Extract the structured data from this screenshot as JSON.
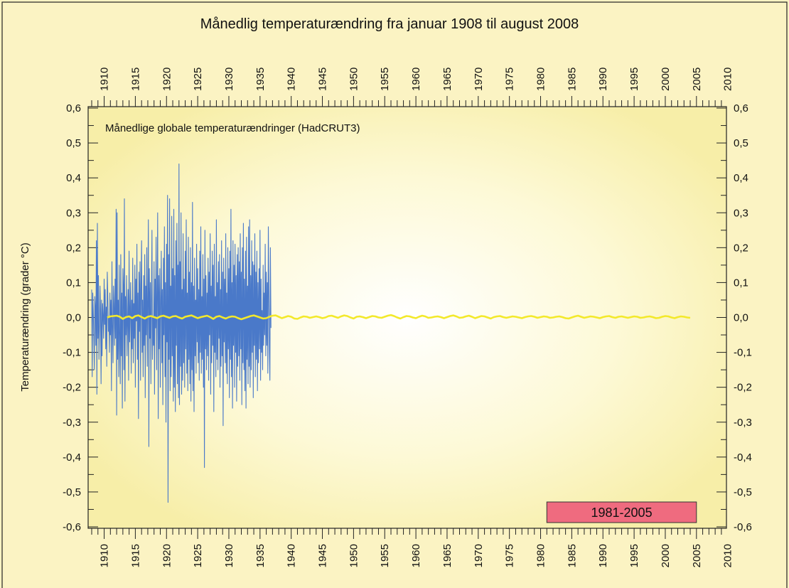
{
  "chart_data": {
    "type": "line",
    "title": "Månedlig temperaturændring fra januar 1908 til august 2008",
    "inner_label": "Månedlige globale temperaturændringer (HadCRUT3)",
    "ylabel": "Temperaturændring (grader °C)",
    "xlabel": "",
    "xlim": [
      1908.0,
      2008.67
    ],
    "ylim": [
      -0.6,
      0.6
    ],
    "x_ticks": [
      1910,
      1915,
      1920,
      1925,
      1930,
      1935,
      1940,
      1945,
      1950,
      1955,
      1960,
      1965,
      1970,
      1975,
      1980,
      1985,
      1990,
      1995,
      2000,
      2005,
      2010
    ],
    "x_tick_labels": [
      "1910",
      "1915",
      "1920",
      "1925",
      "1930",
      "1935",
      "1940",
      "1945",
      "1950",
      "1955",
      "1960",
      "1965",
      "1970",
      "1975",
      "1980",
      "1985",
      "1990",
      "1995",
      "2000",
      "2005",
      "2010"
    ],
    "y_ticks": [
      0.6,
      0.5,
      0.4,
      0.3,
      0.2,
      0.1,
      0.0,
      -0.1,
      -0.2,
      -0.3,
      -0.4,
      -0.5,
      -0.6
    ],
    "y_tick_labels": [
      "0,6",
      "0,5",
      "0,4",
      "0,3",
      "0,2",
      "0,1",
      "0,0",
      "-0,1",
      "-0,2",
      "-0,3",
      "-0,4",
      "-0,5",
      "-0,6"
    ],
    "grid": false,
    "series": [
      {
        "role": "monthly",
        "color": "#4a79c9",
        "x_start": 1908.0,
        "x_step": 0.0833333,
        "values": [
          0.08,
          -0.17,
          0.07,
          0.02,
          -0.05,
          -0.15,
          0.06,
          0.03,
          -0.08,
          0.22,
          -0.22,
          0.27,
          -0.06,
          0.12,
          -0.12,
          -0.03,
          0.09,
          0.02,
          -0.19,
          0.05,
          -0.11,
          0.04,
          0.0,
          -0.06,
          0.11,
          -0.02,
          0.08,
          -0.09,
          0.03,
          -0.14,
          0.13,
          0.06,
          -0.04,
          0.0,
          -0.1,
          0.07,
          -0.05,
          0.05,
          -0.21,
          0.16,
          -0.02,
          -0.13,
          0.09,
          0.04,
          -0.08,
          0.11,
          -0.06,
          0.31,
          -0.28,
          0.3,
          -0.12,
          0.05,
          -0.17,
          0.15,
          -0.08,
          -0.19,
          0.18,
          -0.11,
          0.07,
          -0.26,
          0.14,
          0.09,
          -0.15,
          0.34,
          -0.24,
          0.06,
          -0.05,
          0.12,
          -0.11,
          -0.02,
          0.08,
          -0.18,
          0.19,
          -0.07,
          0.02,
          0.1,
          -0.16,
          0.05,
          -0.09,
          0.17,
          -0.13,
          0.04,
          -0.06,
          0.15,
          -0.2,
          0.11,
          -0.01,
          0.21,
          -0.12,
          0.07,
          -0.29,
          0.13,
          -0.04,
          0.16,
          -0.18,
          0.08,
          0.22,
          -0.1,
          0.05,
          -0.17,
          0.12,
          -0.08,
          0.18,
          -0.23,
          0.09,
          -0.05,
          0.2,
          -0.14,
          0.04,
          0.28,
          -0.37,
          0.14,
          -0.06,
          0.1,
          -0.19,
          0.06,
          0.25,
          -0.12,
          0.0,
          -0.08,
          0.16,
          -0.22,
          0.11,
          -0.03,
          0.23,
          -0.15,
          0.07,
          0.3,
          -0.29,
          0.12,
          -0.09,
          0.14,
          -0.2,
          0.05,
          0.19,
          -0.13,
          0.08,
          -0.25,
          0.17,
          -0.05,
          0.26,
          -0.17,
          0.1,
          -0.3,
          0.21,
          -0.07,
          0.35,
          -0.53,
          0.18,
          -0.12,
          0.34,
          -0.21,
          0.09,
          -0.17,
          0.29,
          -0.11,
          0.14,
          -0.24,
          0.31,
          -0.2,
          0.12,
          -0.27,
          0.22,
          -0.08,
          0.27,
          -0.19,
          0.15,
          -0.23,
          0.44,
          -0.25,
          0.16,
          -0.14,
          0.3,
          -0.22,
          0.08,
          -0.18,
          0.24,
          -0.13,
          0.11,
          -0.2,
          0.19,
          -0.09,
          0.28,
          -0.16,
          0.07,
          -0.21,
          0.23,
          -0.12,
          0.13,
          -0.19,
          0.2,
          -0.24,
          0.1,
          -0.15,
          0.33,
          -0.21,
          0.09,
          -0.27,
          0.17,
          -0.11,
          0.05,
          -0.16,
          0.21,
          -0.07,
          0.14,
          -0.13,
          0.08,
          -0.18,
          0.19,
          -0.1,
          0.26,
          -0.16,
          0.06,
          -0.12,
          0.18,
          -0.2,
          0.11,
          -0.43,
          0.25,
          -0.09,
          0.12,
          -0.15,
          0.07,
          -0.11,
          0.17,
          -0.18,
          0.13,
          -0.05,
          0.24,
          -0.22,
          0.09,
          -0.13,
          0.19,
          -0.08,
          0.15,
          -0.27,
          0.21,
          -0.1,
          0.06,
          -0.17,
          0.28,
          -0.12,
          0.1,
          -0.15,
          0.16,
          -0.06,
          0.18,
          -0.2,
          0.08,
          -0.14,
          0.22,
          -0.11,
          0.13,
          -0.31,
          0.17,
          -0.07,
          0.11,
          -0.13,
          0.24,
          -0.16,
          0.07,
          -0.19,
          0.2,
          -0.09,
          0.14,
          -0.23,
          0.19,
          -0.12,
          0.31,
          -0.17,
          0.1,
          -0.26,
          0.22,
          -0.08,
          0.15,
          -0.2,
          0.21,
          -0.1,
          0.12,
          -0.24,
          0.18,
          -0.14,
          0.2,
          -0.11,
          0.16,
          -0.18,
          0.24,
          -0.09,
          0.13,
          -0.25,
          0.2,
          -0.13,
          0.27,
          -0.15,
          0.11,
          -0.21,
          0.19,
          -0.26,
          0.23,
          -0.12,
          0.09,
          -0.19,
          0.26,
          -0.14,
          0.28,
          -0.2,
          0.12,
          -0.15,
          0.22,
          -0.1,
          0.16,
          -0.23,
          0.15,
          -0.08,
          0.24,
          -0.17,
          0.13,
          -0.12,
          0.19,
          -0.21,
          0.1,
          -0.13,
          0.14,
          -0.09,
          0.25,
          -0.18,
          0.11,
          -0.1,
          0.02,
          -0.15,
          0.15,
          -0.08,
          0.07,
          -0.05,
          0.21,
          -0.11,
          0.13,
          -0.08,
          0.1,
          -0.16,
          0.26,
          0.09,
          -0.1,
          -0.18,
          0.2,
          -0.03
        ]
      },
      {
        "role": "trend",
        "color": "#f3e92b",
        "x_start": 1910.5,
        "x_step": 0.5,
        "values": [
          0.0,
          0.003,
          0.004,
          0.005,
          0.002,
          -0.004,
          0.001,
          0.003,
          -0.002,
          0.004,
          0.006,
          0.001,
          -0.003,
          0.002,
          0.004,
          0.001,
          -0.002,
          0.003,
          0.005,
          0.002,
          -0.001,
          0.003,
          0.004,
          0.0,
          -0.003,
          0.002,
          0.004,
          0.006,
          0.002,
          -0.002,
          0.001,
          0.003,
          0.005,
          0.001,
          -0.004,
          0.002,
          0.004,
          0.0,
          -0.003,
          0.001,
          0.003,
          0.002,
          -0.002,
          -0.005,
          -0.002,
          0.001,
          0.004,
          0.006,
          0.003,
          0.0,
          -0.003,
          -0.002,
          0.002,
          0.005,
          0.006,
          0.002,
          -0.002,
          0.001,
          0.004,
          0.002,
          -0.003,
          -0.004,
          0.0,
          0.003,
          0.002,
          -0.001,
          0.001,
          0.003,
          0.001,
          -0.002,
          0.0,
          0.004,
          0.005,
          0.002,
          -0.001,
          0.003,
          0.006,
          0.004,
          0.0,
          -0.003,
          0.002,
          0.003,
          0.001,
          -0.002,
          0.001,
          0.004,
          0.003,
          0.0,
          -0.001,
          0.002,
          0.005,
          0.007,
          0.004,
          0.0,
          -0.003,
          0.001,
          0.004,
          0.003,
          0.0,
          -0.002,
          0.002,
          0.005,
          0.003,
          -0.001,
          0.0,
          0.002,
          0.003,
          0.001,
          -0.002,
          0.001,
          0.004,
          0.006,
          0.003,
          -0.001,
          0.0,
          0.003,
          0.005,
          0.002,
          -0.002,
          0.001,
          0.004,
          0.003,
          0.0,
          -0.003,
          0.001,
          0.003,
          0.004,
          0.001,
          -0.001,
          0.001,
          0.003,
          0.002,
          0.0,
          -0.002,
          0.001,
          0.003,
          0.004,
          0.002,
          -0.001,
          0.001,
          0.003,
          0.002,
          -0.001,
          0.0,
          0.002,
          0.003,
          0.001,
          -0.002,
          -0.003,
          0.0,
          0.003,
          0.005,
          0.002,
          -0.001,
          0.001,
          0.003,
          0.002,
          0.0,
          -0.002,
          0.001,
          0.003,
          0.004,
          0.001,
          -0.001,
          0.002,
          0.003,
          0.001,
          -0.001,
          0.001,
          0.003,
          0.002,
          -0.001,
          0.0,
          0.002,
          0.003,
          0.001,
          -0.002,
          -0.001,
          0.002,
          0.004,
          0.003,
          0.0,
          -0.002,
          0.001,
          0.003,
          0.002,
          0.0,
          -0.001
        ]
      }
    ],
    "period_box": {
      "label": "1981-2005",
      "x_from": 1981,
      "x_to": 2005,
      "color": "#ef6b7f"
    }
  }
}
